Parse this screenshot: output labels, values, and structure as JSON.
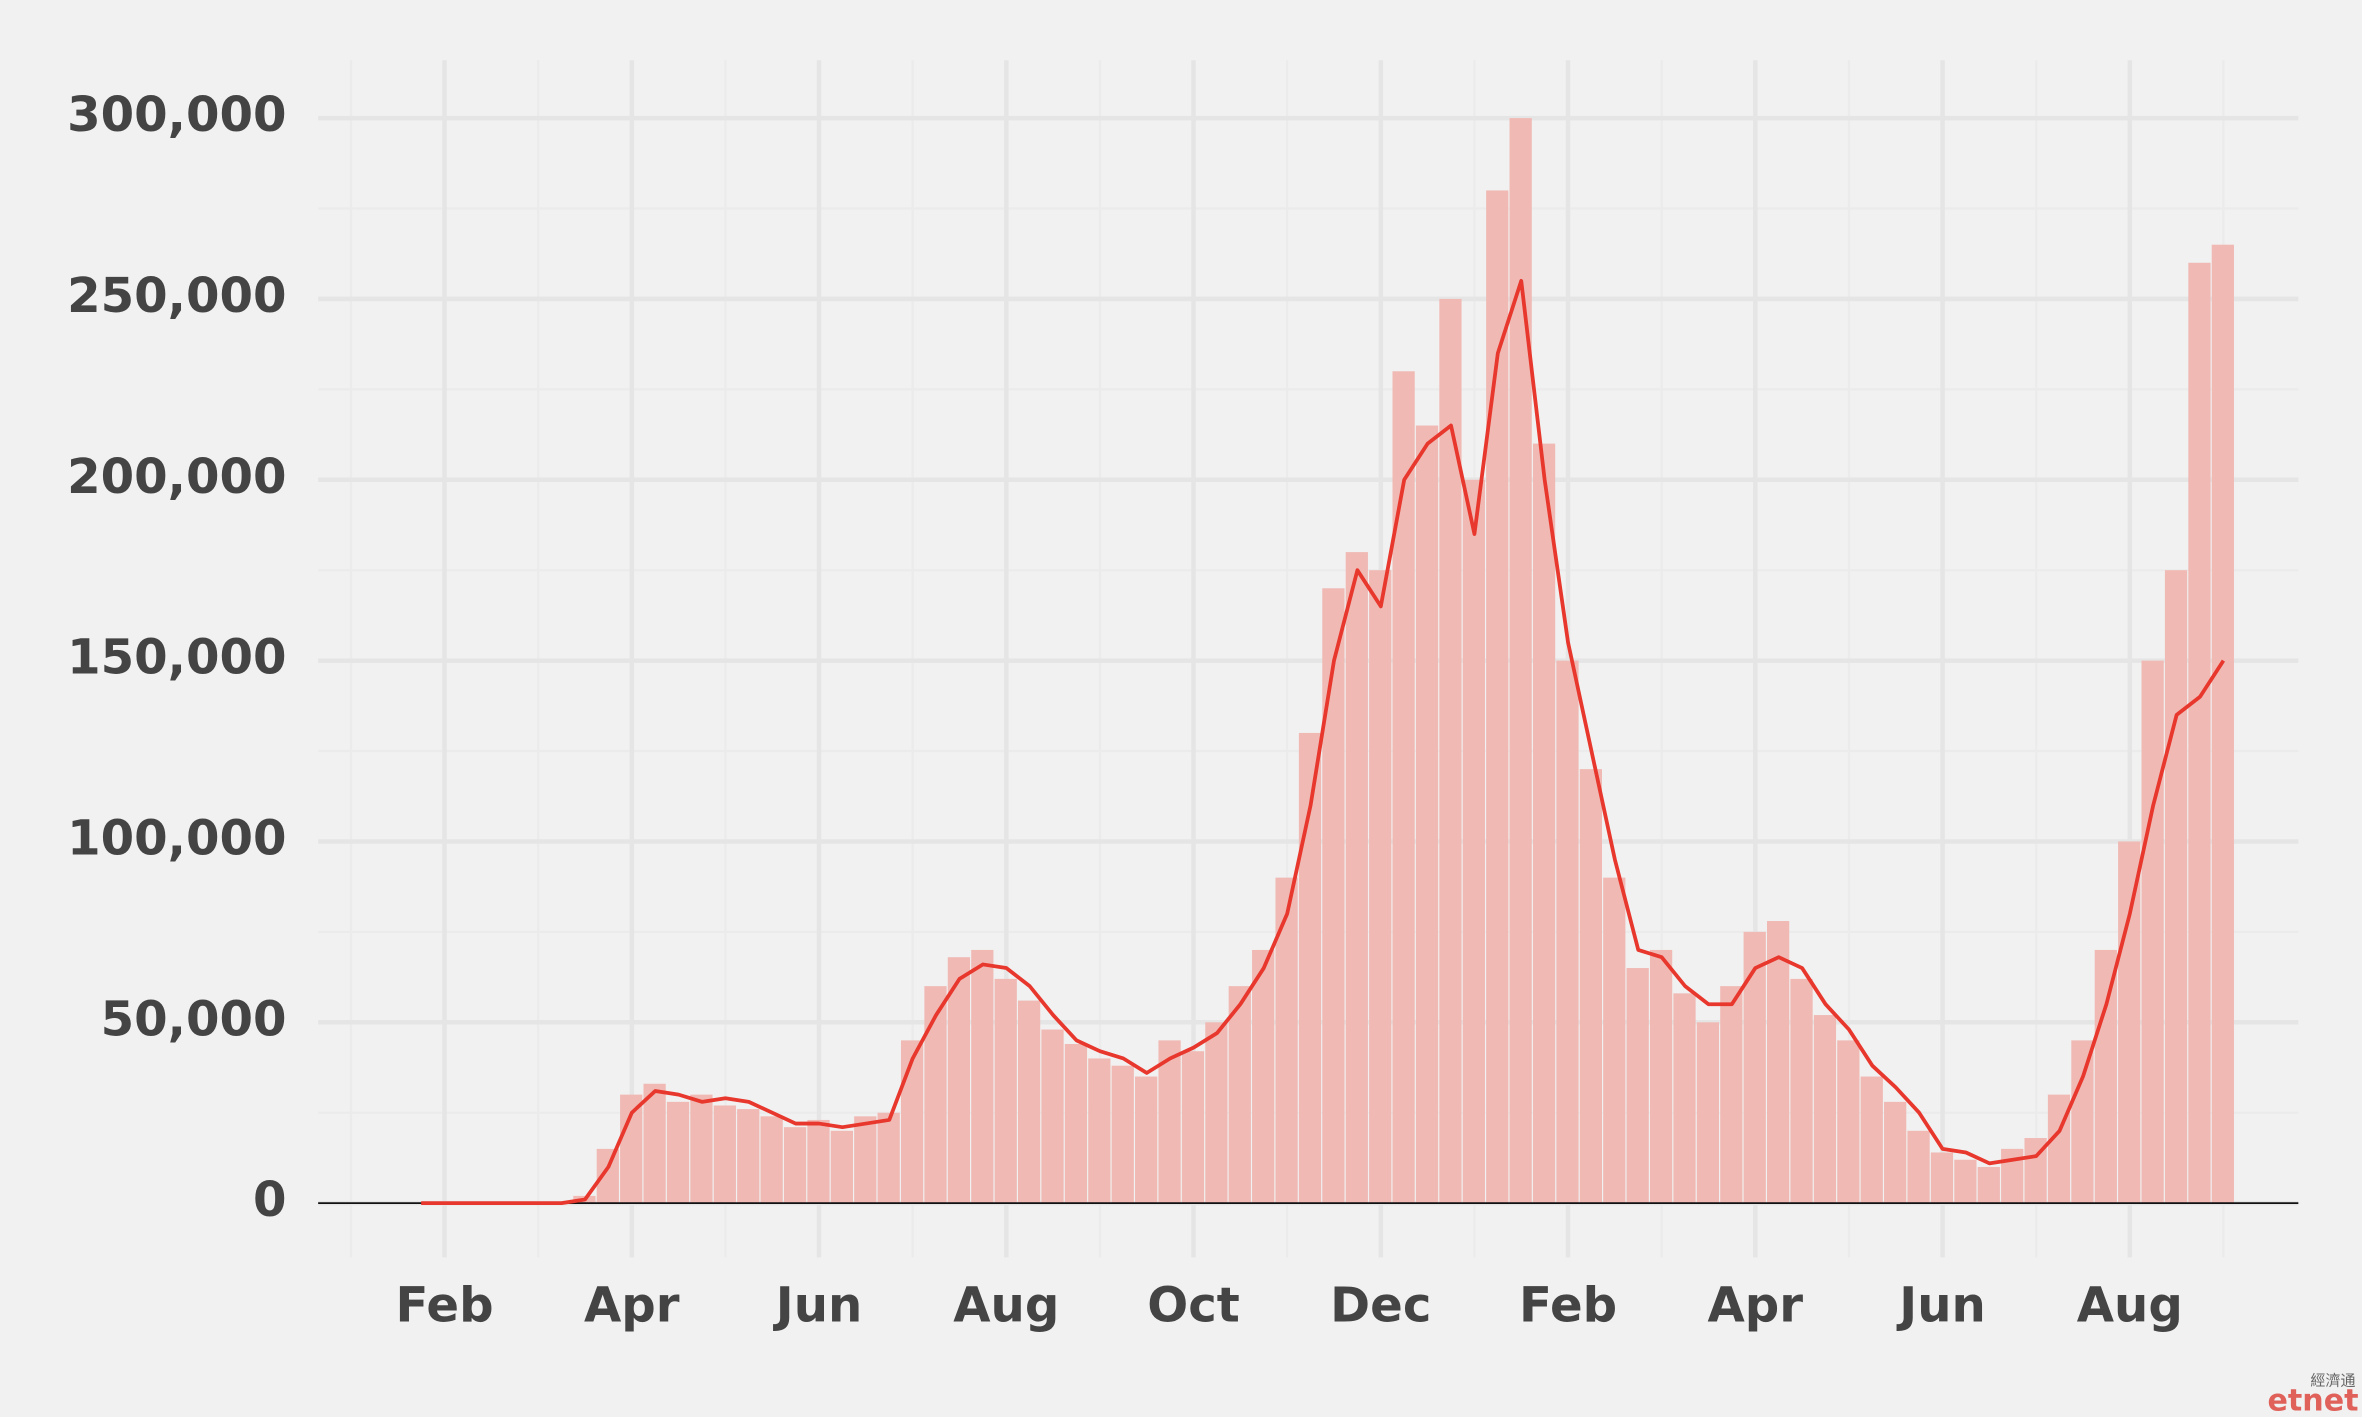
{
  "chart_data": {
    "type": "bar_line",
    "x": [
      0.75,
      1,
      1.25,
      1.5,
      1.75,
      2,
      2.25,
      2.5,
      2.75,
      3,
      3.25,
      3.5,
      3.75,
      4,
      4.25,
      4.5,
      4.75,
      5,
      5.25,
      5.5,
      5.75,
      6,
      6.25,
      6.5,
      6.75,
      7,
      7.25,
      7.5,
      7.75,
      8,
      8.25,
      8.5,
      8.75,
      9,
      9.25,
      9.5,
      9.75,
      10,
      10.25,
      10.5,
      10.75,
      11,
      11.25,
      11.5,
      11.75,
      12,
      12.25,
      12.5,
      12.75,
      13,
      13.25,
      13.5,
      13.75,
      14,
      14.25,
      14.5,
      14.75,
      15,
      15.25,
      15.5,
      15.75,
      16,
      16.25,
      16.5,
      16.75,
      17,
      17.25,
      17.5,
      17.75,
      18,
      18.25,
      18.5,
      18.75,
      19,
      19.25,
      19.5,
      19.75,
      20
    ],
    "series": [
      {
        "type": "bar",
        "color": "#f0b9b4",
        "values": [
          0,
          0,
          0,
          0,
          0,
          0,
          0,
          2000,
          15000,
          30000,
          33000,
          28000,
          30000,
          27000,
          26000,
          24000,
          21000,
          23000,
          20000,
          24000,
          25000,
          45000,
          60000,
          68000,
          70000,
          62000,
          56000,
          48000,
          44000,
          40000,
          38000,
          35000,
          45000,
          42000,
          50000,
          60000,
          70000,
          90000,
          130000,
          170000,
          180000,
          175000,
          230000,
          215000,
          250000,
          200000,
          280000,
          300000,
          210000,
          150000,
          120000,
          90000,
          65000,
          70000,
          58000,
          50000,
          60000,
          75000,
          78000,
          62000,
          52000,
          45000,
          35000,
          28000,
          20000,
          14000,
          12000,
          10000,
          15000,
          18000,
          30000,
          45000,
          70000,
          100000,
          150000,
          175000,
          260000,
          265000
        ]
      },
      {
        "type": "line",
        "color": "#e8372c",
        "values": [
          0,
          0,
          0,
          0,
          0,
          0,
          0,
          1000,
          10000,
          25000,
          31000,
          30000,
          28000,
          29000,
          28000,
          25000,
          22000,
          22000,
          21000,
          22000,
          23000,
          40000,
          52000,
          62000,
          66000,
          65000,
          60000,
          52000,
          45000,
          42000,
          40000,
          36000,
          40000,
          43000,
          47000,
          55000,
          65000,
          80000,
          110000,
          150000,
          175000,
          165000,
          200000,
          210000,
          215000,
          185000,
          235000,
          255000,
          200000,
          155000,
          125000,
          95000,
          70000,
          68000,
          60000,
          55000,
          55000,
          65000,
          68000,
          65000,
          55000,
          48000,
          38000,
          32000,
          25000,
          15000,
          14000,
          11000,
          12000,
          13000,
          20000,
          35000,
          55000,
          80000,
          110000,
          135000,
          140000,
          150000
        ]
      }
    ],
    "xlim": [
      -0.35,
      20.8
    ],
    "xticks": [
      {
        "value": 1,
        "label": "Feb"
      },
      {
        "value": 3,
        "label": "Apr"
      },
      {
        "value": 5,
        "label": "Jun"
      },
      {
        "value": 7,
        "label": "Aug"
      },
      {
        "value": 9,
        "label": "Oct"
      },
      {
        "value": 11,
        "label": "Dec"
      },
      {
        "value": 13,
        "label": "Feb"
      },
      {
        "value": 15,
        "label": "Apr"
      },
      {
        "value": 17,
        "label": "Jun"
      },
      {
        "value": 19,
        "label": "Aug"
      }
    ],
    "xminor": [
      0,
      2,
      4,
      6,
      8,
      10,
      12,
      14,
      16,
      18,
      20
    ],
    "ylim": [
      -15000,
      316000
    ],
    "yticks": [
      0,
      {
        "value": 50000,
        "label": "50,000"
      },
      {
        "value": 100000,
        "label": "100,000"
      },
      {
        "value": 150000,
        "label": "150,000"
      },
      {
        "value": 200000,
        "label": "200,000"
      },
      {
        "value": 250000,
        "label": "250,000"
      },
      {
        "value": 300000,
        "label": "300,000"
      }
    ],
    "yminor": [
      25000,
      75000,
      125000,
      175000,
      225000,
      275000
    ],
    "grid": true,
    "watermark": {
      "top": "經濟通",
      "bottom": "etnet"
    }
  }
}
